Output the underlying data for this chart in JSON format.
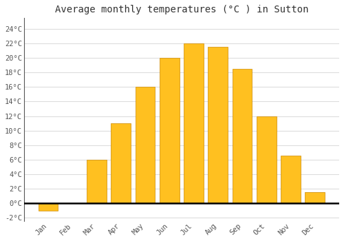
{
  "title": "Average monthly temperatures (°C ) in Sutton",
  "months": [
    "Jan",
    "Feb",
    "Mar",
    "Apr",
    "May",
    "Jun",
    "Jul",
    "Aug",
    "Sep",
    "Oct",
    "Nov",
    "Dec"
  ],
  "values": [
    -1.0,
    0.0,
    6.0,
    11.0,
    16.0,
    20.0,
    22.0,
    21.5,
    18.5,
    12.0,
    6.5,
    1.5
  ],
  "bar_color_top": "#FFC020",
  "bar_color_bottom": "#F59000",
  "bar_edge_color": "#CC8800",
  "ylim": [
    -2.5,
    25.5
  ],
  "yticks": [
    -2,
    0,
    2,
    4,
    6,
    8,
    10,
    12,
    14,
    16,
    18,
    20,
    22,
    24
  ],
  "ytick_labels": [
    "-2°C",
    "0°C",
    "2°C",
    "4°C",
    "6°C",
    "8°C",
    "10°C",
    "12°C",
    "14°C",
    "16°C",
    "18°C",
    "20°C",
    "22°C",
    "24°C"
  ],
  "background_color": "#ffffff",
  "grid_color": "#dddddd",
  "title_fontsize": 10,
  "tick_fontsize": 7.5,
  "bar_width": 0.82,
  "zero_line_color": "#000000"
}
